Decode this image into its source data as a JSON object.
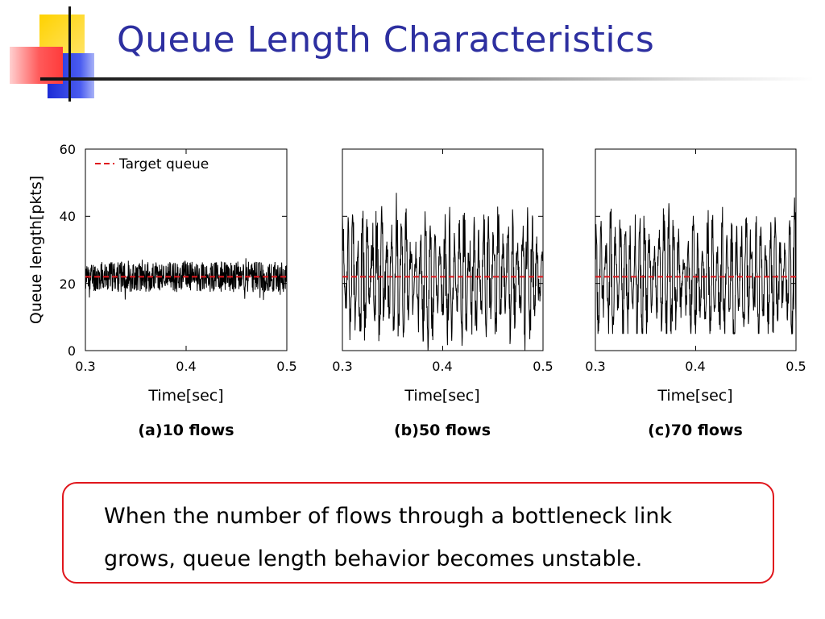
{
  "slide": {
    "title": "Queue Length Characteristics",
    "note": "When the number of flows through a bottleneck link grows, queue length behavior becomes unstable.",
    "colors": {
      "title": "#2d2fa0",
      "note_border": "#e0161c",
      "target": "#e0161c",
      "series": "#000000"
    }
  },
  "chart_data": [
    {
      "type": "line",
      "caption": "(a)10 flows",
      "xlabel": "Time[sec]",
      "ylabel": "Queue length[pkts]",
      "xlim": [
        0.3,
        0.5
      ],
      "ylim": [
        0,
        60
      ],
      "xticks": [
        "0.3",
        "0.4",
        "0.5"
      ],
      "yticks": [
        "0",
        "20",
        "40",
        "60"
      ],
      "legend": {
        "label": "Target queue",
        "position": "top-left"
      },
      "target_queue": 22,
      "series": [
        {
          "values_mean": 22,
          "values_range": [
            15,
            28
          ]
        }
      ]
    },
    {
      "type": "line",
      "caption": "(b)50 flows",
      "xlabel": "Time[sec]",
      "xlim": [
        0.3,
        0.5
      ],
      "ylim": [
        0,
        60
      ],
      "xticks": [
        "0.3",
        "0.4",
        "0.5"
      ],
      "target_queue": 22,
      "series": [
        {
          "values_mean": 22,
          "values_range": [
            0,
            47
          ]
        }
      ]
    },
    {
      "type": "line",
      "caption": "(c)70 flows",
      "xlabel": "Time[sec]",
      "xlim": [
        0.3,
        0.5
      ],
      "ylim": [
        0,
        60
      ],
      "xticks": [
        "0.3",
        "0.4",
        "0.5"
      ],
      "target_queue": 22,
      "series": [
        {
          "values_mean": 22,
          "values_range": [
            5,
            50
          ]
        }
      ]
    }
  ]
}
